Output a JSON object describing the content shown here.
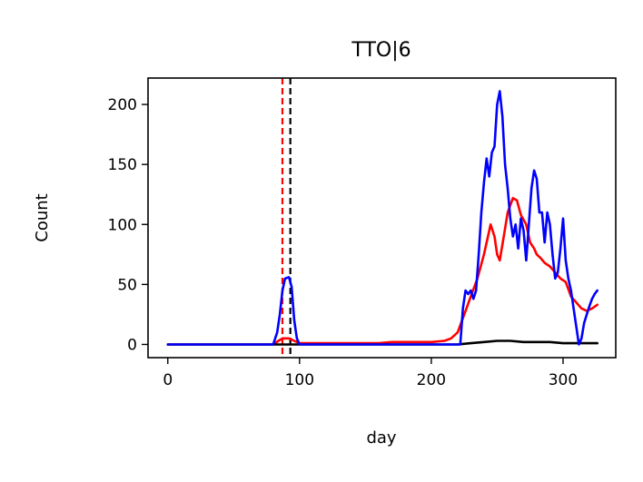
{
  "chart_data": {
    "type": "line",
    "title": "TTO|6",
    "xlabel": "day",
    "ylabel": "Count",
    "xlim": [
      -15,
      340
    ],
    "ylim": [
      -11,
      222
    ],
    "xticks": [
      0,
      100,
      200,
      300
    ],
    "yticks": [
      0,
      50,
      100,
      150,
      200
    ],
    "grid": false,
    "legend": "none",
    "vlines": [
      {
        "x": 87,
        "color": "#ff0000",
        "style": "dashed"
      },
      {
        "x": 93,
        "color": "#000000",
        "style": "dashed"
      }
    ],
    "series": [
      {
        "color": "#ff0000",
        "points": [
          [
            0,
            0
          ],
          [
            80,
            0
          ],
          [
            84,
            3
          ],
          [
            87,
            5
          ],
          [
            92,
            5
          ],
          [
            96,
            3
          ],
          [
            100,
            1
          ],
          [
            105,
            1
          ],
          [
            140,
            1
          ],
          [
            160,
            1
          ],
          [
            170,
            2
          ],
          [
            180,
            2
          ],
          [
            190,
            2
          ],
          [
            200,
            2
          ],
          [
            210,
            3
          ],
          [
            215,
            5
          ],
          [
            220,
            10
          ],
          [
            225,
            25
          ],
          [
            230,
            40
          ],
          [
            235,
            55
          ],
          [
            240,
            75
          ],
          [
            245,
            100
          ],
          [
            248,
            90
          ],
          [
            250,
            75
          ],
          [
            252,
            70
          ],
          [
            255,
            90
          ],
          [
            258,
            110
          ],
          [
            262,
            122
          ],
          [
            265,
            120
          ],
          [
            268,
            108
          ],
          [
            272,
            100
          ],
          [
            275,
            85
          ],
          [
            278,
            80
          ],
          [
            280,
            75
          ],
          [
            283,
            72
          ],
          [
            286,
            68
          ],
          [
            290,
            65
          ],
          [
            294,
            60
          ],
          [
            298,
            55
          ],
          [
            302,
            52
          ],
          [
            306,
            40
          ],
          [
            310,
            35
          ],
          [
            314,
            30
          ],
          [
            318,
            28
          ],
          [
            322,
            30
          ],
          [
            326,
            33
          ]
        ]
      },
      {
        "color": "#000000",
        "points": [
          [
            0,
            0
          ],
          [
            80,
            0
          ],
          [
            90,
            0
          ],
          [
            100,
            0
          ],
          [
            150,
            0
          ],
          [
            200,
            0
          ],
          [
            220,
            0
          ],
          [
            230,
            1
          ],
          [
            240,
            2
          ],
          [
            250,
            3
          ],
          [
            260,
            3
          ],
          [
            270,
            2
          ],
          [
            280,
            2
          ],
          [
            290,
            2
          ],
          [
            300,
            1
          ],
          [
            310,
            1
          ],
          [
            320,
            1
          ],
          [
            326,
            1
          ]
        ]
      },
      {
        "color": "#0000ff",
        "points": [
          [
            0,
            0
          ],
          [
            80,
            0
          ],
          [
            83,
            10
          ],
          [
            85,
            25
          ],
          [
            87,
            45
          ],
          [
            89,
            55
          ],
          [
            92,
            56
          ],
          [
            94,
            48
          ],
          [
            96,
            20
          ],
          [
            98,
            5
          ],
          [
            100,
            0
          ],
          [
            150,
            0
          ],
          [
            200,
            0
          ],
          [
            222,
            0
          ],
          [
            224,
            30
          ],
          [
            226,
            45
          ],
          [
            228,
            42
          ],
          [
            230,
            45
          ],
          [
            232,
            38
          ],
          [
            234,
            45
          ],
          [
            236,
            75
          ],
          [
            238,
            110
          ],
          [
            240,
            135
          ],
          [
            242,
            155
          ],
          [
            244,
            140
          ],
          [
            246,
            160
          ],
          [
            248,
            165
          ],
          [
            250,
            200
          ],
          [
            252,
            211
          ],
          [
            254,
            190
          ],
          [
            256,
            150
          ],
          [
            258,
            130
          ],
          [
            260,
            105
          ],
          [
            262,
            90
          ],
          [
            264,
            100
          ],
          [
            266,
            80
          ],
          [
            268,
            105
          ],
          [
            270,
            95
          ],
          [
            272,
            70
          ],
          [
            274,
            100
          ],
          [
            276,
            130
          ],
          [
            278,
            145
          ],
          [
            280,
            138
          ],
          [
            282,
            110
          ],
          [
            284,
            110
          ],
          [
            286,
            85
          ],
          [
            288,
            110
          ],
          [
            290,
            100
          ],
          [
            292,
            75
          ],
          [
            294,
            55
          ],
          [
            296,
            60
          ],
          [
            298,
            80
          ],
          [
            300,
            105
          ],
          [
            302,
            70
          ],
          [
            304,
            55
          ],
          [
            306,
            45
          ],
          [
            308,
            30
          ],
          [
            310,
            15
          ],
          [
            312,
            0
          ],
          [
            314,
            5
          ],
          [
            316,
            18
          ],
          [
            318,
            25
          ],
          [
            320,
            32
          ],
          [
            322,
            38
          ],
          [
            324,
            42
          ],
          [
            326,
            45
          ]
        ]
      }
    ]
  }
}
